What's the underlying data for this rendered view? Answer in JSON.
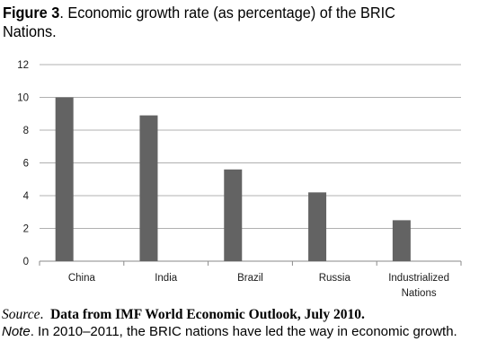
{
  "figure": {
    "label": "Figure 3",
    "title_text": ". Economic growth rate (as percentage) of the BRIC Nations."
  },
  "chart_data": {
    "type": "bar",
    "categories": [
      "China",
      "India",
      "Brazil",
      "Russia",
      "Industrialized Nations"
    ],
    "category_lines": [
      [
        "China"
      ],
      [
        "India"
      ],
      [
        "Brazil"
      ],
      [
        "Russia"
      ],
      [
        "Industrialized",
        "Nations"
      ]
    ],
    "values": [
      10.0,
      8.9,
      5.6,
      4.2,
      2.5
    ],
    "ylim": [
      0,
      12
    ],
    "yticks": [
      0,
      2,
      4,
      6,
      8,
      10,
      12
    ],
    "grid": true,
    "bar_color": "#636363",
    "grid_color": "#b0b0b0"
  },
  "source": {
    "label": "Source",
    "text": "Data from IMF World Economic Outlook, July 2010."
  },
  "note": {
    "label": "Note",
    "text": ". In 2010–2011, the BRIC nations have led the way in economic growth."
  }
}
